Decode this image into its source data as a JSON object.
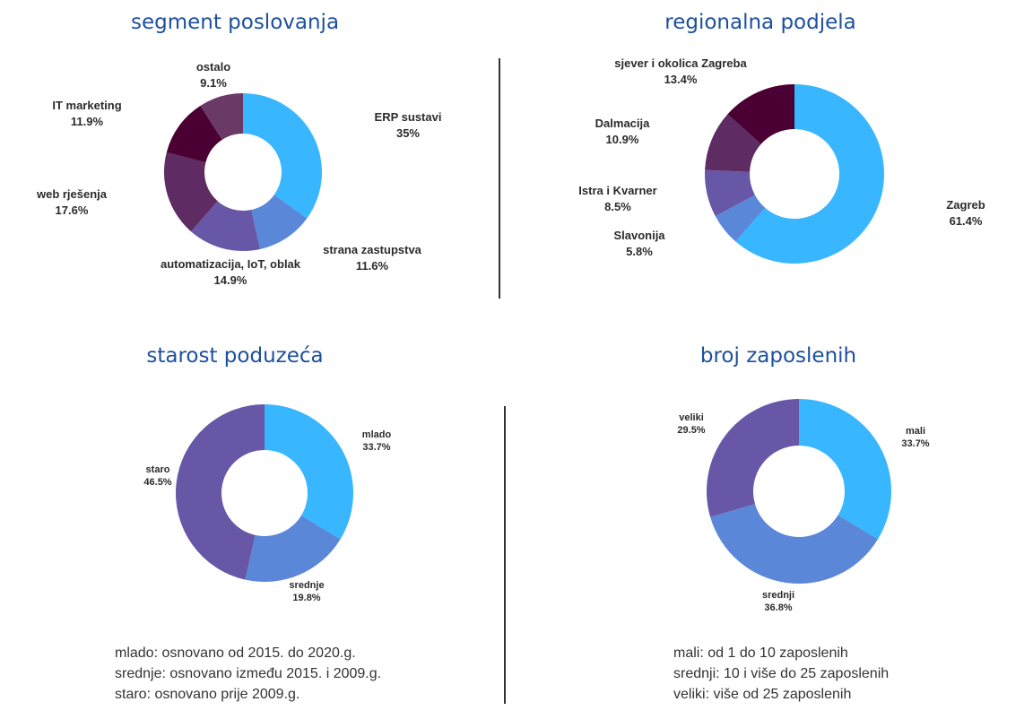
{
  "colors": {
    "title": "#1d4f9e",
    "light_blue": "#38b6ff",
    "blue": "#5b87d9",
    "purple": "#6757a6",
    "plum": "#5e2b63",
    "dark_plum": "#4b0033",
    "mauve": "#6b3966"
  },
  "chart_data": [
    {
      "type": "pie",
      "donut": true,
      "title": "segment poslovanja",
      "slices": [
        {
          "label": "ERP sustavi",
          "value": 35,
          "display": "35%",
          "color": "#38b6ff"
        },
        {
          "label": "strana zastupstva",
          "value": 11.6,
          "display": "11.6%",
          "color": "#5b87d9"
        },
        {
          "label": "automatizacija, IoT, oblak",
          "value": 14.9,
          "display": "14.9%",
          "color": "#6757a6"
        },
        {
          "label": "web rješenja",
          "value": 17.6,
          "display": "17.6%",
          "color": "#5e2b63"
        },
        {
          "label": "IT marketing",
          "value": 11.9,
          "display": "11.9%",
          "color": "#4b0033"
        },
        {
          "label": "ostalo",
          "value": 9.1,
          "display": "9.1%",
          "color": "#6b3966"
        }
      ]
    },
    {
      "type": "pie",
      "donut": true,
      "title": "regionalna podjela",
      "slices": [
        {
          "label": "Zagreb",
          "value": 61.4,
          "display": "61.4%",
          "color": "#38b6ff"
        },
        {
          "label": "Slavonija",
          "value": 5.8,
          "display": "5.8%",
          "color": "#5b87d9"
        },
        {
          "label": "Istra i Kvarner",
          "value": 8.5,
          "display": "8.5%",
          "color": "#6757a6"
        },
        {
          "label": "Dalmacija",
          "value": 10.9,
          "display": "10.9%",
          "color": "#5e2b63"
        },
        {
          "label": "sjever i okolica Zagreba",
          "value": 13.4,
          "display": "13.4%",
          "color": "#4b0033"
        }
      ]
    },
    {
      "type": "pie",
      "donut": true,
      "title": "starost poduzeća",
      "slices": [
        {
          "label": "mlado",
          "value": 33.7,
          "display": "33.7%",
          "color": "#38b6ff"
        },
        {
          "label": "srednje",
          "value": 19.8,
          "display": "19.8%",
          "color": "#5b87d9"
        },
        {
          "label": "staro",
          "value": 46.5,
          "display": "46.5%",
          "color": "#6757a6"
        }
      ]
    },
    {
      "type": "pie",
      "donut": true,
      "title": "broj zaposlenih",
      "slices": [
        {
          "label": "mali",
          "value": 33.7,
          "display": "33.7%",
          "color": "#38b6ff"
        },
        {
          "label": "srednji",
          "value": 36.8,
          "display": "36.8%",
          "color": "#5b87d9"
        },
        {
          "label": "veliki",
          "value": 29.5,
          "display": "29.5%",
          "color": "#6757a6"
        }
      ]
    }
  ],
  "notes": {
    "age": [
      "mlado: osnovano od 2015. do 2020.g.",
      "srednje: osnovano između 2015. i 2009.g.",
      "staro: osnovano prije 2009.g."
    ],
    "size": [
      "mali: od 1 do 10 zaposlenih",
      "srednji: 10 i više  do 25 zaposlenih",
      "veliki: više od 25 zaposlenih"
    ]
  }
}
